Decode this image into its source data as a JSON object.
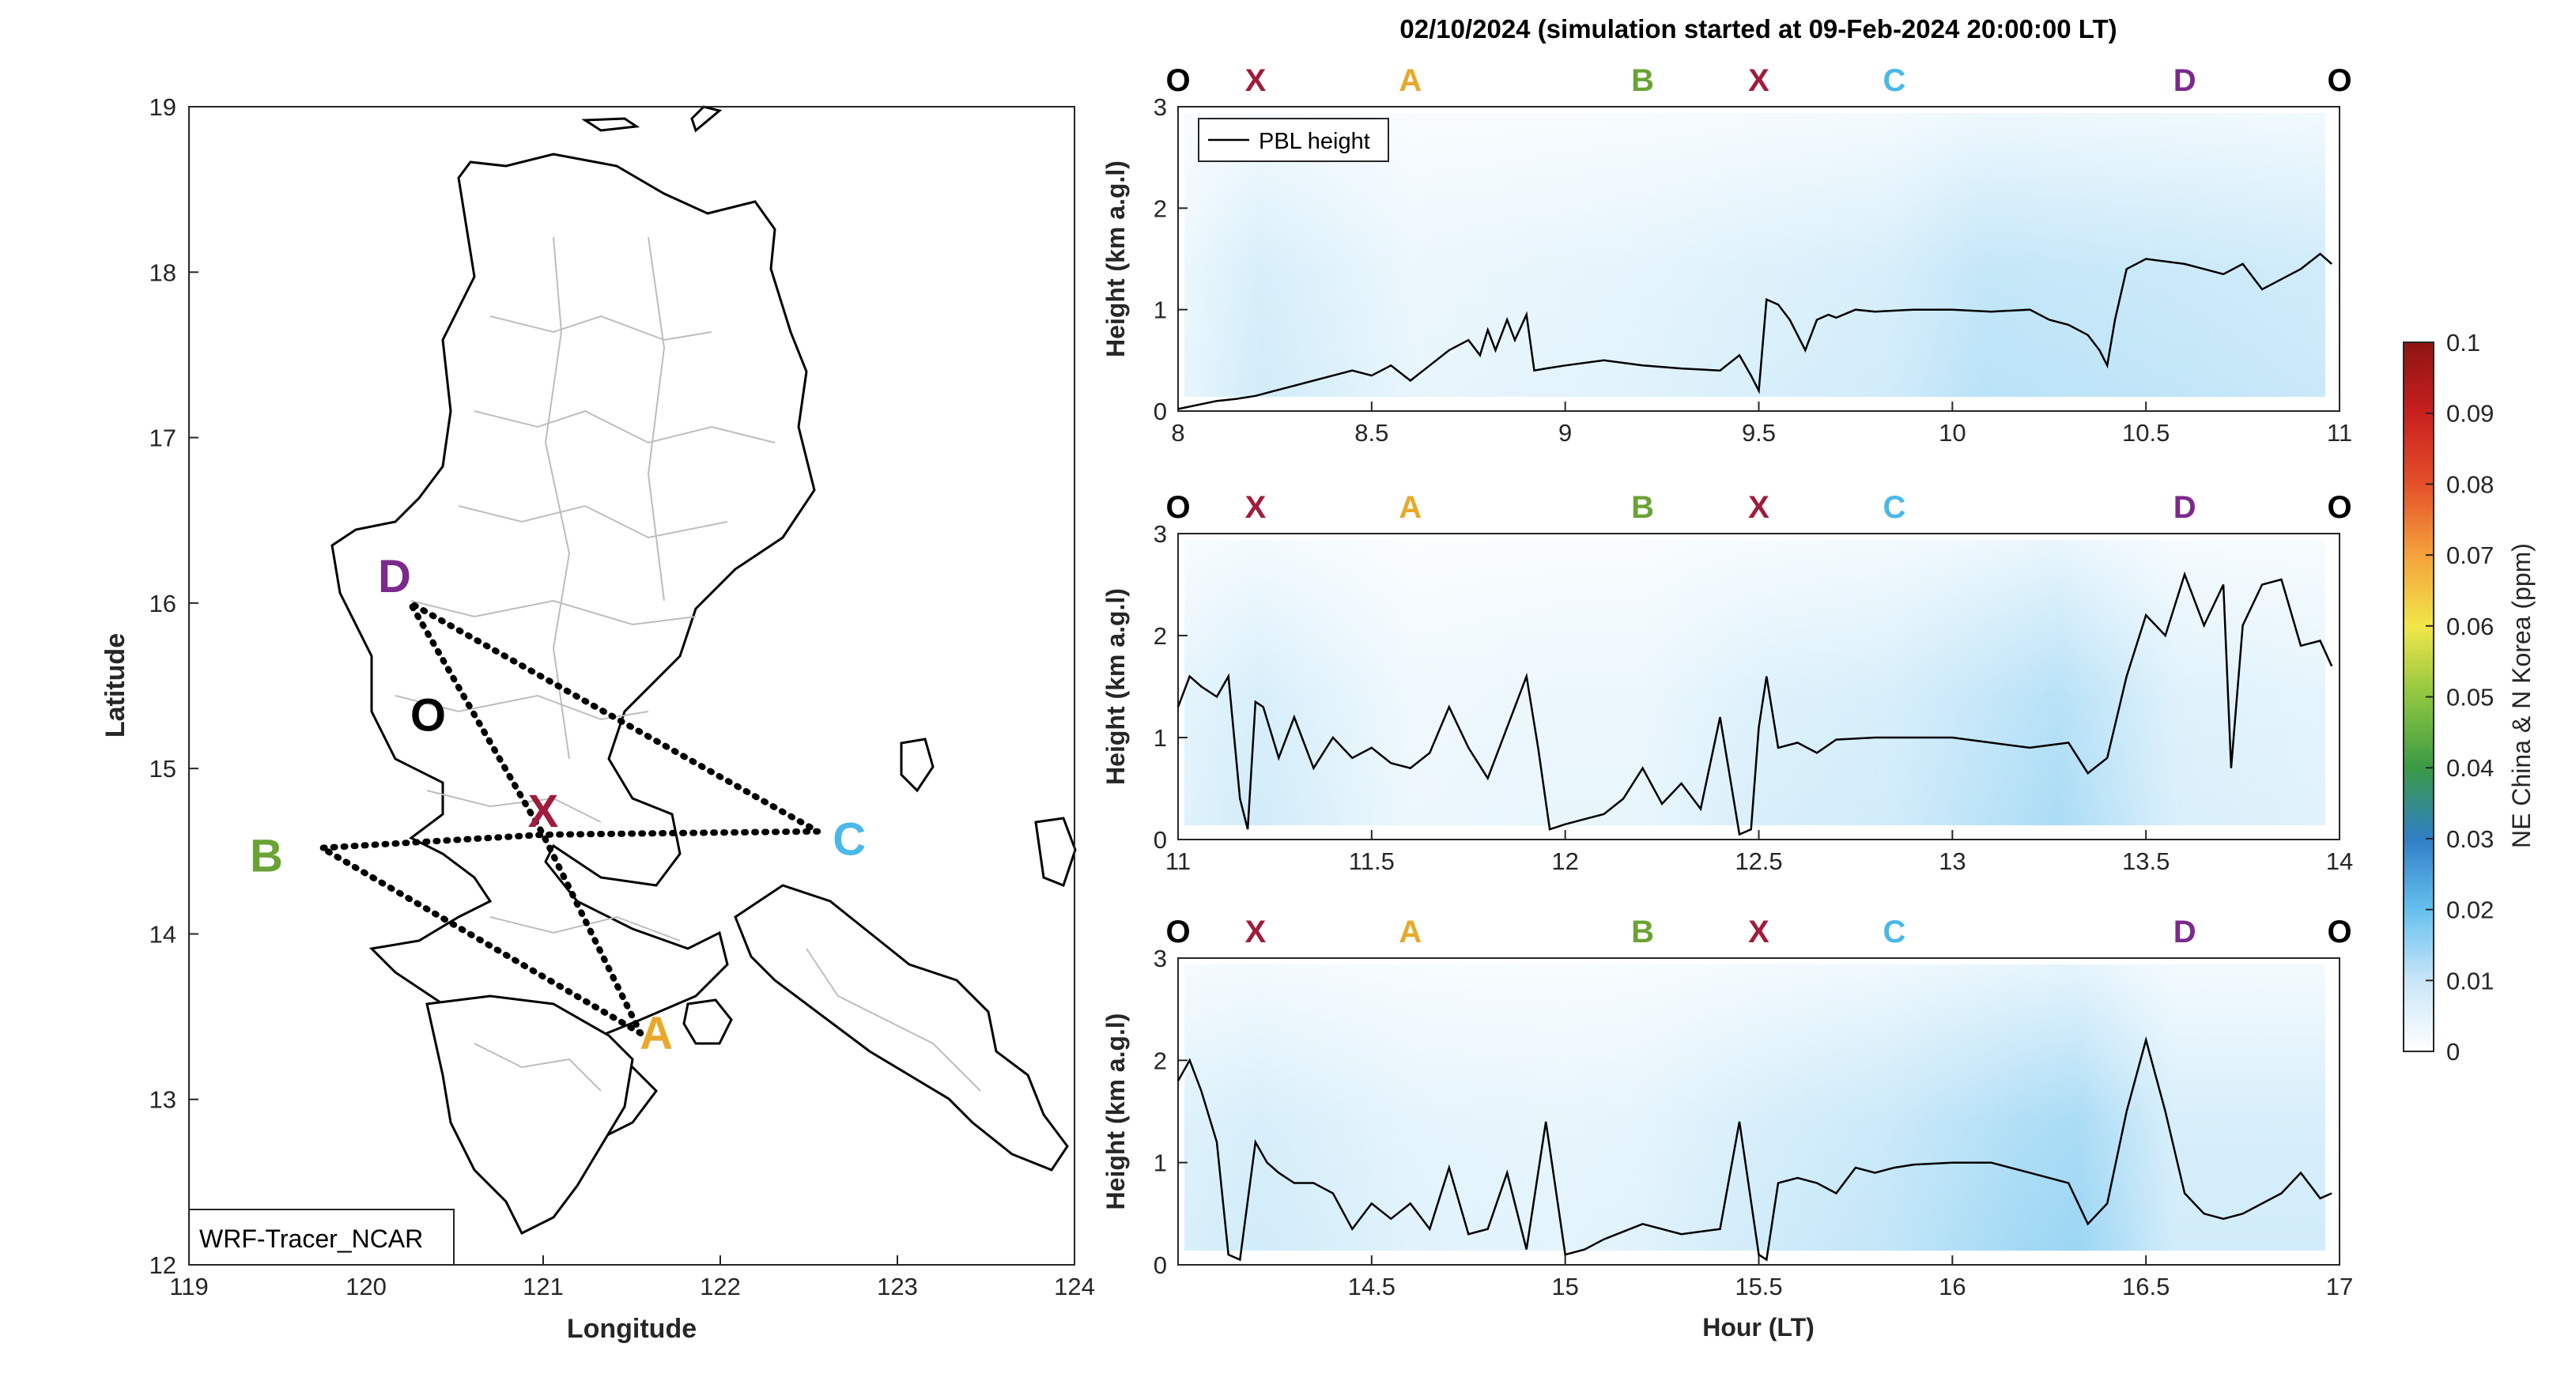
{
  "figure_title": "02/10/2024 (simulation started at 09-Feb-2024 20:00:00 LT)",
  "colors": {
    "A": "#e8a92a",
    "B": "#6aa334",
    "C": "#4ab8e8",
    "D": "#7b2a8c",
    "X": "#a01c3c",
    "O": "#000000",
    "tracer_low": "#ffffff",
    "tracer_mid": "#66c0ee",
    "pbl_line": "#000000"
  },
  "map": {
    "xlabel": "Longitude",
    "ylabel": "Latitude",
    "xlim": [
      119,
      124
    ],
    "ylim": [
      12,
      19
    ],
    "xticks": [
      "119",
      "120",
      "121",
      "122",
      "123",
      "124"
    ],
    "yticks": [
      "12",
      "13",
      "14",
      "15",
      "16",
      "17",
      "18",
      "19"
    ],
    "model_label": "WRF-Tracer_NCAR",
    "points": [
      {
        "id": "O",
        "lon": 120.35,
        "lat": 15.18
      },
      {
        "id": "X",
        "lon": 121.0,
        "lat": 14.6
      },
      {
        "id": "A",
        "lon": 121.55,
        "lat": 13.4
      },
      {
        "id": "B",
        "lon": 119.75,
        "lat": 14.52
      },
      {
        "id": "C",
        "lon": 122.55,
        "lat": 14.62
      },
      {
        "id": "D",
        "lon": 120.25,
        "lat": 16.0
      }
    ],
    "route_lon": [
      121.55,
      119.75,
      121.0,
      122.55,
      120.25,
      121.0,
      121.55
    ],
    "route_lat": [
      13.4,
      14.52,
      14.6,
      14.62,
      16.0,
      14.6,
      13.4
    ]
  },
  "legend_pbl": "PBL height",
  "colorbar": {
    "label": "NE China & N Korea (ppm)",
    "ticks": [
      "0",
      "0.01",
      "0.02",
      "0.03",
      "0.04",
      "0.05",
      "0.06",
      "0.07",
      "0.08",
      "0.09",
      "0.1"
    ],
    "colors": [
      "#ffffff",
      "#c9e6f8",
      "#66c0ee",
      "#2f7fc6",
      "#3a9a46",
      "#8dc63f",
      "#f2e64a",
      "#f4a23c",
      "#e5502a",
      "#c8201f",
      "#8e1412"
    ]
  },
  "chart_data": [
    {
      "type": "heatmap",
      "ylabel": "Height (km a.g.l)",
      "xlim": [
        8,
        11
      ],
      "ylim": [
        0,
        3
      ],
      "xticks": [
        "8",
        "8.5",
        "9",
        "9.5",
        "10",
        "10.5",
        "11"
      ],
      "yticks": [
        "0",
        "1",
        "2",
        "3"
      ],
      "site_labels": [
        "O",
        "X",
        "A",
        "B",
        "X",
        "C",
        "D",
        "O"
      ],
      "site_hours": [
        8.0,
        8.2,
        8.6,
        9.2,
        9.5,
        9.85,
        10.6,
        11.0
      ],
      "intensity_hours": [
        8.0,
        8.2,
        8.6,
        9.0,
        9.2,
        9.5,
        9.85,
        10.1,
        10.6,
        11.0
      ],
      "intensity_values": [
        0.15,
        0.3,
        0.15,
        0.18,
        0.2,
        0.25,
        0.3,
        0.45,
        0.4,
        0.35
      ],
      "series": [
        {
          "name": "PBL height",
          "x": [
            8.0,
            8.1,
            8.15,
            8.2,
            8.25,
            8.3,
            8.4,
            8.45,
            8.5,
            8.55,
            8.6,
            8.65,
            8.7,
            8.75,
            8.78,
            8.8,
            8.82,
            8.85,
            8.87,
            8.9,
            8.92,
            8.95,
            9.0,
            9.1,
            9.2,
            9.3,
            9.4,
            9.45,
            9.48,
            9.5,
            9.52,
            9.55,
            9.58,
            9.62,
            9.65,
            9.68,
            9.7,
            9.75,
            9.8,
            9.9,
            10.0,
            10.1,
            10.2,
            10.25,
            10.3,
            10.35,
            10.38,
            10.4,
            10.42,
            10.45,
            10.5,
            10.6,
            10.65,
            10.7,
            10.75,
            10.8,
            10.85,
            10.9,
            10.95,
            10.98
          ],
          "y": [
            0.02,
            0.1,
            0.12,
            0.15,
            0.2,
            0.25,
            0.35,
            0.4,
            0.35,
            0.45,
            0.3,
            0.45,
            0.6,
            0.7,
            0.55,
            0.8,
            0.6,
            0.9,
            0.7,
            0.95,
            0.4,
            0.42,
            0.45,
            0.5,
            0.45,
            0.42,
            0.4,
            0.55,
            0.35,
            0.2,
            1.1,
            1.05,
            0.9,
            0.6,
            0.9,
            0.95,
            0.92,
            1.0,
            0.98,
            1.0,
            1.0,
            0.98,
            1.0,
            0.9,
            0.85,
            0.75,
            0.6,
            0.45,
            0.9,
            1.4,
            1.5,
            1.45,
            1.4,
            1.35,
            1.45,
            1.2,
            1.3,
            1.4,
            1.55,
            1.45
          ]
        }
      ]
    },
    {
      "type": "heatmap",
      "ylabel": "Height (km a.g.l)",
      "xlim": [
        11,
        14
      ],
      "ylim": [
        0,
        3
      ],
      "xticks": [
        "11",
        "11.5",
        "12",
        "12.5",
        "13",
        "13.5",
        "14"
      ],
      "yticks": [
        "0",
        "1",
        "2",
        "3"
      ],
      "site_labels": [
        "O",
        "X",
        "A",
        "B",
        "X",
        "C",
        "D",
        "O"
      ],
      "site_hours": [
        11.0,
        11.2,
        11.6,
        12.2,
        12.5,
        12.85,
        13.6,
        14.0
      ],
      "intensity_hours": [
        11.0,
        11.2,
        11.6,
        12.0,
        12.2,
        12.5,
        12.85,
        13.3,
        13.6,
        14.0
      ],
      "intensity_values": [
        0.2,
        0.3,
        0.12,
        0.15,
        0.15,
        0.25,
        0.3,
        0.55,
        0.25,
        0.2
      ],
      "series": [
        {
          "name": "PBL height",
          "x": [
            11.0,
            11.03,
            11.06,
            11.1,
            11.13,
            11.16,
            11.18,
            11.2,
            11.22,
            11.26,
            11.3,
            11.35,
            11.4,
            11.45,
            11.5,
            11.55,
            11.6,
            11.65,
            11.7,
            11.75,
            11.8,
            11.85,
            11.9,
            11.93,
            11.96,
            12.0,
            12.05,
            12.1,
            12.15,
            12.2,
            12.25,
            12.3,
            12.35,
            12.4,
            12.45,
            12.48,
            12.5,
            12.52,
            12.55,
            12.6,
            12.65,
            12.7,
            12.8,
            12.9,
            13.0,
            13.1,
            13.2,
            13.3,
            13.35,
            13.4,
            13.45,
            13.5,
            13.55,
            13.6,
            13.65,
            13.7,
            13.72,
            13.75,
            13.8,
            13.85,
            13.9,
            13.95,
            13.98
          ],
          "y": [
            1.3,
            1.6,
            1.5,
            1.4,
            1.6,
            0.4,
            0.1,
            1.35,
            1.3,
            0.8,
            1.2,
            0.7,
            1.0,
            0.8,
            0.9,
            0.75,
            0.7,
            0.85,
            1.3,
            0.9,
            0.6,
            1.1,
            1.6,
            0.9,
            0.1,
            0.15,
            0.2,
            0.25,
            0.4,
            0.7,
            0.35,
            0.55,
            0.3,
            1.2,
            0.05,
            0.1,
            1.1,
            1.6,
            0.9,
            0.95,
            0.85,
            0.98,
            1.0,
            1.0,
            1.0,
            0.95,
            0.9,
            0.95,
            0.65,
            0.8,
            1.6,
            2.2,
            2.0,
            2.6,
            2.1,
            2.5,
            0.7,
            2.1,
            2.5,
            2.55,
            1.9,
            1.95,
            1.7
          ]
        }
      ]
    },
    {
      "type": "heatmap",
      "ylabel": "Height (km a.g.l)",
      "xlabel": "Hour (LT)",
      "xlim": [
        14,
        17
      ],
      "ylim": [
        0,
        3
      ],
      "xticks": [
        "14.5",
        "15",
        "15.5",
        "16",
        "16.5",
        "17"
      ],
      "yticks": [
        "0",
        "1",
        "2",
        "3"
      ],
      "site_labels": [
        "O",
        "X",
        "A",
        "B",
        "X",
        "C",
        "D",
        "O"
      ],
      "site_hours": [
        14.0,
        14.2,
        14.6,
        15.2,
        15.5,
        15.85,
        16.6,
        17.0
      ],
      "intensity_hours": [
        14.0,
        14.2,
        14.6,
        15.0,
        15.2,
        15.5,
        15.85,
        16.2,
        16.35,
        16.6,
        17.0
      ],
      "intensity_values": [
        0.25,
        0.3,
        0.2,
        0.18,
        0.2,
        0.3,
        0.4,
        0.6,
        0.65,
        0.3,
        0.3
      ],
      "series": [
        {
          "name": "PBL height",
          "x": [
            14.0,
            14.03,
            14.06,
            14.1,
            14.13,
            14.16,
            14.2,
            14.23,
            14.26,
            14.3,
            14.35,
            14.4,
            14.45,
            14.5,
            14.55,
            14.6,
            14.65,
            14.7,
            14.75,
            14.8,
            14.85,
            14.9,
            14.95,
            15.0,
            15.05,
            15.1,
            15.2,
            15.3,
            15.4,
            15.45,
            15.5,
            15.52,
            15.55,
            15.6,
            15.65,
            15.7,
            15.75,
            15.8,
            15.85,
            15.9,
            16.0,
            16.1,
            16.2,
            16.3,
            16.35,
            16.4,
            16.45,
            16.5,
            16.55,
            16.6,
            16.65,
            16.7,
            16.75,
            16.8,
            16.85,
            16.9,
            16.95,
            16.98
          ],
          "y": [
            1.8,
            2.0,
            1.7,
            1.2,
            0.1,
            0.05,
            1.2,
            1.0,
            0.9,
            0.8,
            0.8,
            0.7,
            0.35,
            0.6,
            0.45,
            0.6,
            0.35,
            0.95,
            0.3,
            0.35,
            0.9,
            0.15,
            1.4,
            0.1,
            0.15,
            0.25,
            0.4,
            0.3,
            0.35,
            1.4,
            0.1,
            0.05,
            0.8,
            0.85,
            0.8,
            0.7,
            0.95,
            0.9,
            0.95,
            0.98,
            1.0,
            1.0,
            0.9,
            0.8,
            0.4,
            0.6,
            1.5,
            2.2,
            1.5,
            0.7,
            0.5,
            0.45,
            0.5,
            0.6,
            0.7,
            0.9,
            0.65,
            0.7
          ]
        }
      ]
    }
  ]
}
